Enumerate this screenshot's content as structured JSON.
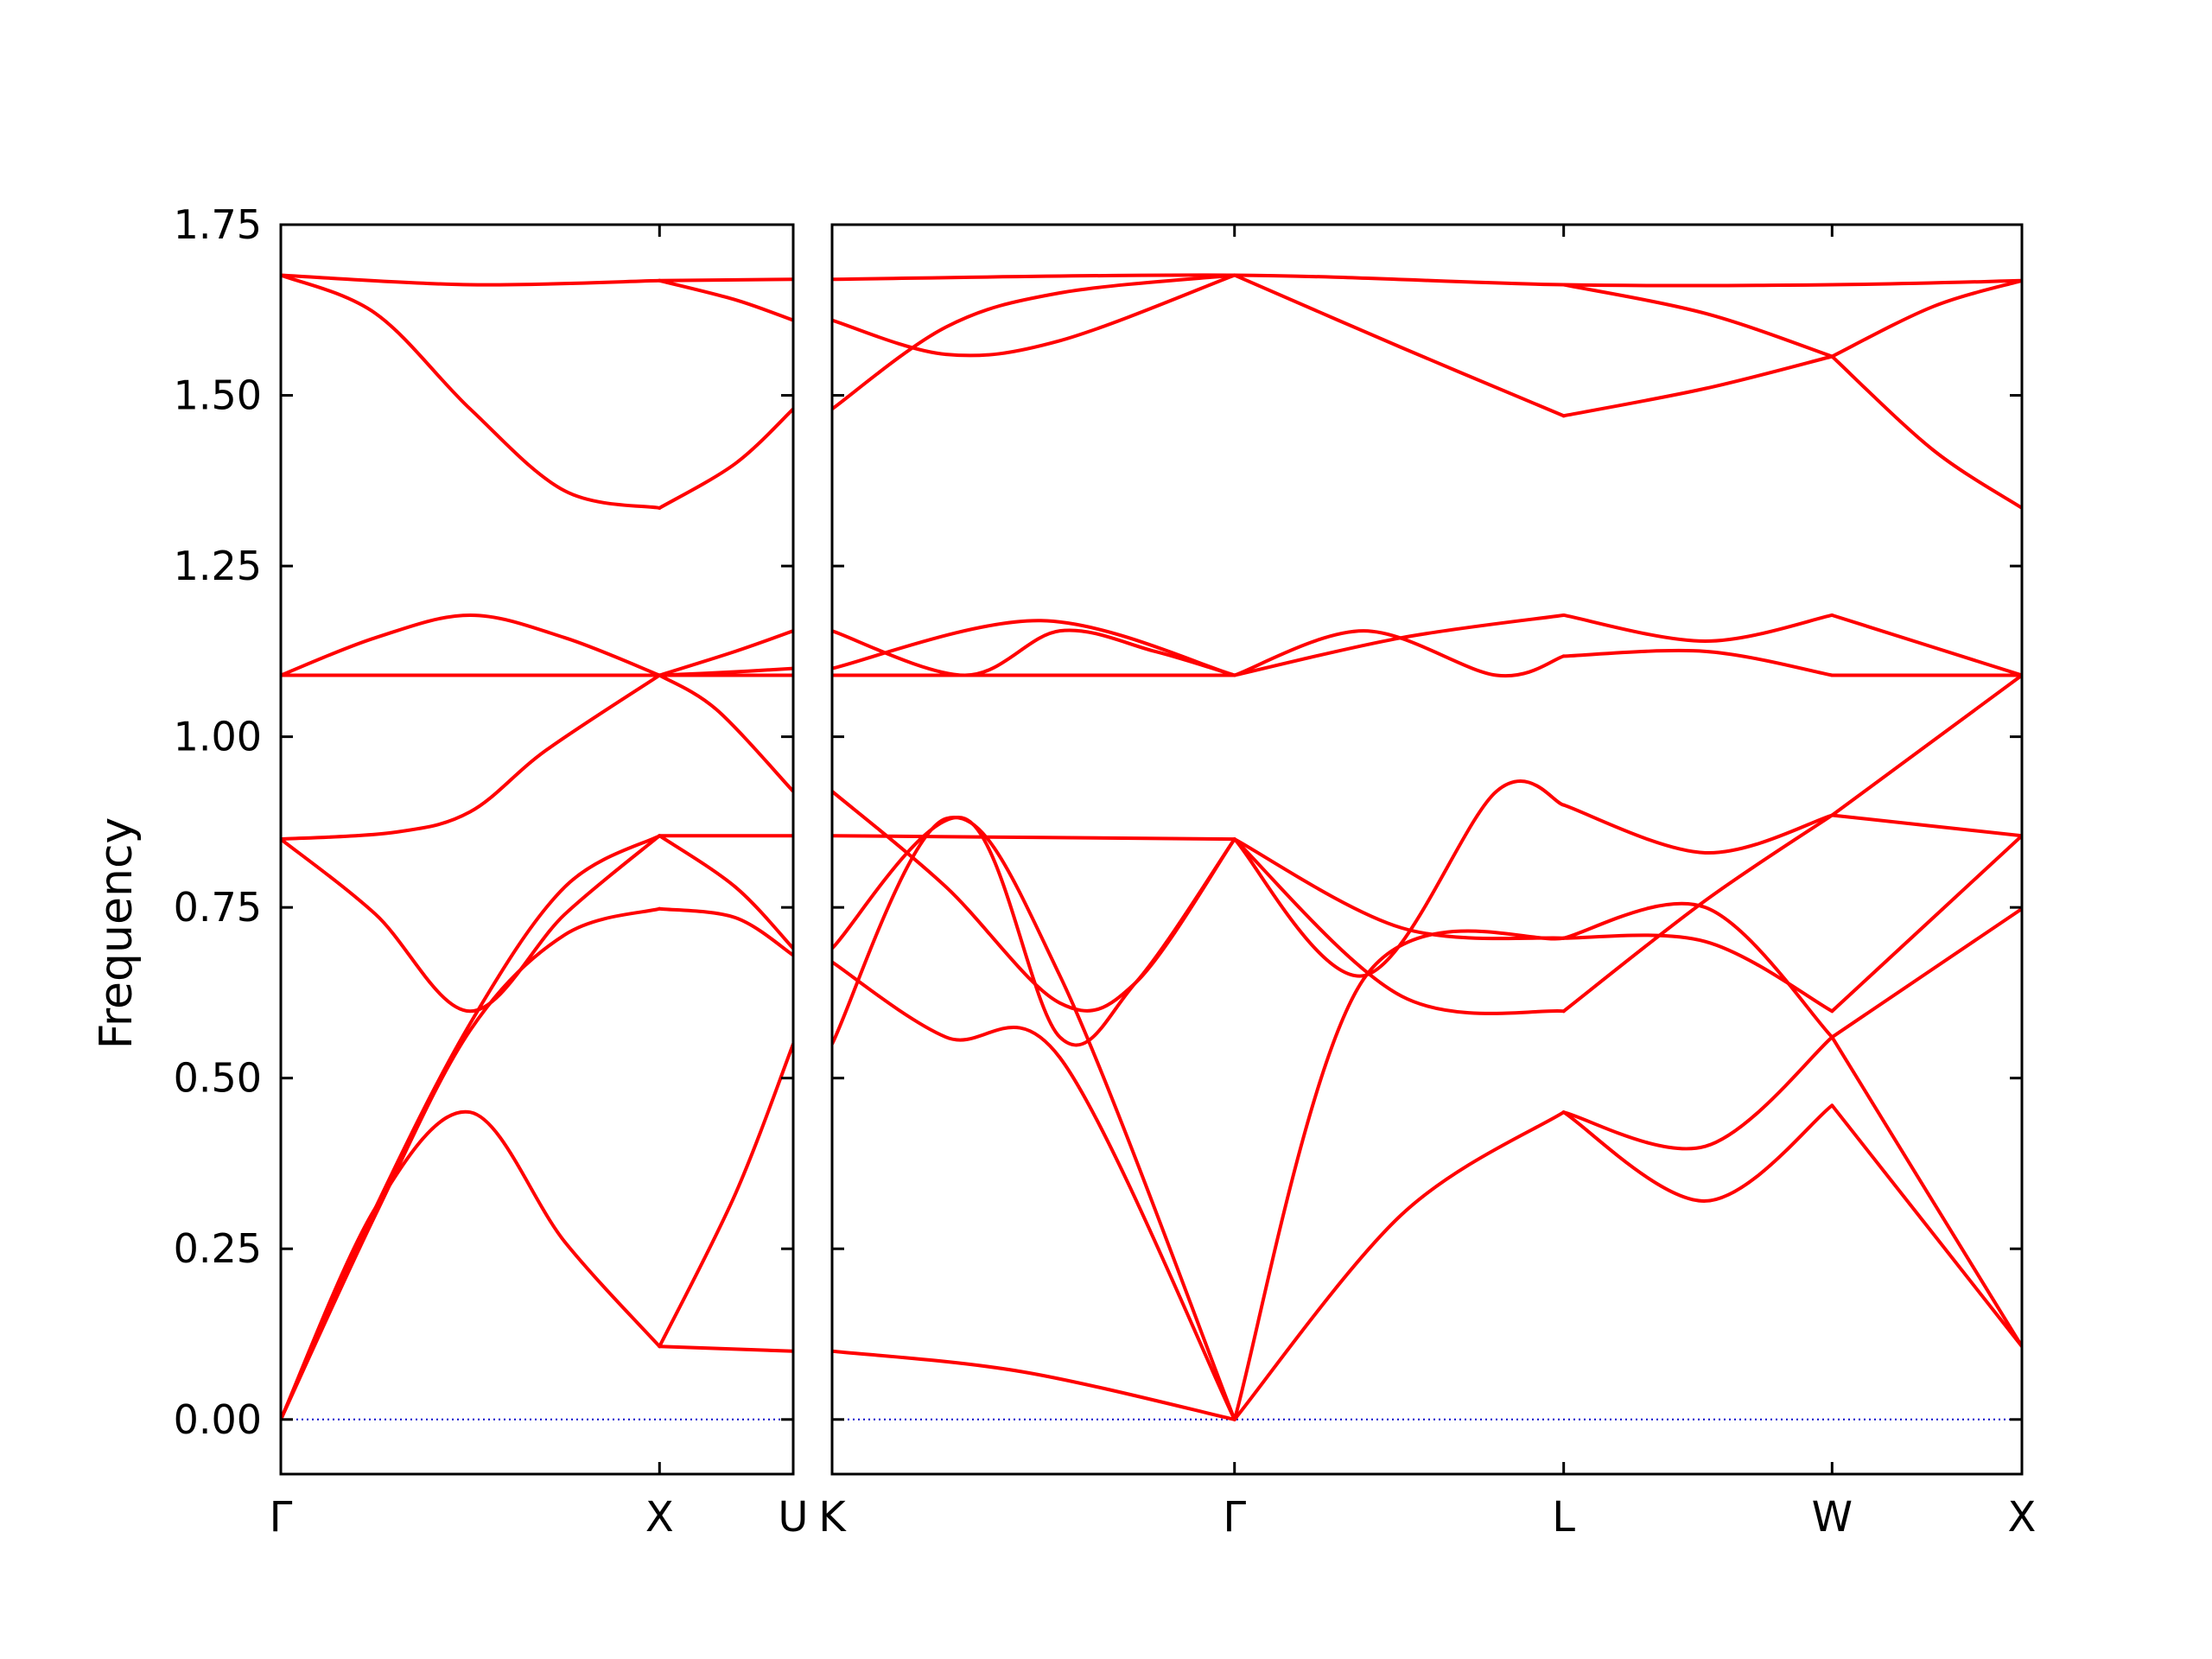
{
  "chart_data": {
    "type": "line",
    "title": "",
    "ylabel": "Frequency",
    "ylim": [
      -0.08,
      1.75
    ],
    "yticks": [
      "0.00",
      "0.25",
      "0.50",
      "0.75",
      "1.00",
      "1.25",
      "1.50",
      "1.75"
    ],
    "grid": false,
    "legend": "none",
    "colors": {
      "band": "#ff0000",
      "zero_line": "#0000cc",
      "axes": "#000000"
    },
    "panels": [
      {
        "name": "Γ-X-U",
        "xticks": [
          {
            "label": "Γ",
            "x": 0
          },
          {
            "label": "X",
            "x": 1
          },
          {
            "label": "U",
            "x": 1.353
          }
        ],
        "xlim": [
          0,
          1.353
        ],
        "series": [
          {
            "x": [
              0,
              0.5,
              1
            ],
            "values": [
              1.676,
              1.662,
              1.668
            ]
          },
          {
            "x": [
              1,
              1.353
            ],
            "values": [
              1.668,
              1.67
            ]
          },
          {
            "x": [
              0,
              0.25,
              0.5,
              0.75,
              1
            ],
            "values": [
              1.676,
              1.62,
              1.48,
              1.36,
              1.335
            ]
          },
          {
            "x": [
              1,
              1.2,
              1.353
            ],
            "values": [
              1.668,
              1.64,
              1.61
            ]
          },
          {
            "x": [
              1,
              1.2,
              1.353
            ],
            "values": [
              1.335,
              1.4,
              1.48
            ]
          },
          {
            "x": [
              0,
              0.25,
              0.5,
              0.75,
              1
            ],
            "values": [
              1.09,
              1.145,
              1.178,
              1.145,
              1.09
            ]
          },
          {
            "x": [
              0,
              0.5,
              1
            ],
            "values": [
              1.09,
              1.09,
              1.09
            ]
          },
          {
            "x": [
              0,
              1.353
            ],
            "values": [
              1.09,
              1.09
            ]
          },
          {
            "x": [
              1,
              1.2,
              1.353
            ],
            "values": [
              1.09,
              1.125,
              1.155
            ]
          },
          {
            "x": [
              1,
              1.2,
              1.353
            ],
            "values": [
              1.09,
              1.095,
              1.1
            ]
          },
          {
            "x": [
              0,
              0.3,
              0.5,
              0.7,
              1
            ],
            "values": [
              0.85,
              0.86,
              0.89,
              0.98,
              1.09
            ]
          },
          {
            "x": [
              1,
              1.15,
              1.353
            ],
            "values": [
              1.09,
              1.04,
              0.92
            ]
          },
          {
            "x": [
              0,
              0.25,
              0.5,
              0.75,
              1
            ],
            "values": [
              0.85,
              0.74,
              0.598,
              0.74,
              0.855
            ]
          },
          {
            "x": [
              1,
              1.353
            ],
            "values": [
              0.855,
              0.855
            ]
          },
          {
            "x": [
              0,
              0.25,
              0.5,
              0.75,
              1
            ],
            "values": [
              0,
              0.31,
              0.58,
              0.78,
              0.855
            ]
          },
          {
            "x": [
              1,
              1.2,
              1.353
            ],
            "values": [
              0.855,
              0.78,
              0.69
            ]
          },
          {
            "x": [
              0,
              0.25,
              0.5,
              0.75,
              1
            ],
            "values": [
              0,
              0.3,
              0.57,
              0.71,
              0.748
            ]
          },
          {
            "x": [
              1,
              1.2,
              1.353
            ],
            "values": [
              0.748,
              0.735,
              0.68
            ]
          },
          {
            "x": [
              0,
              0.25,
              0.5,
              0.75,
              1
            ],
            "values": [
              0,
              0.31,
              0.45,
              0.26,
              0.107
            ]
          },
          {
            "x": [
              1,
              1.2,
              1.353
            ],
            "values": [
              0.107,
              0.33,
              0.55
            ]
          },
          {
            "x": [
              1,
              1.353
            ],
            "values": [
              0.107,
              0.1
            ]
          }
        ],
        "zero_line": true
      },
      {
        "name": "K-Γ-L-W-X",
        "xticks": [
          {
            "label": "K",
            "x": 0
          },
          {
            "label": "Γ",
            "x": 1.06
          },
          {
            "label": "L",
            "x": 1.927
          },
          {
            "label": "W",
            "x": 2.634
          },
          {
            "label": "X",
            "x": 3.134
          }
        ],
        "xlim": [
          0,
          3.134
        ],
        "series": [
          {
            "x": [
              0,
              1.06,
              1.927,
              2.634,
              3.134
            ],
            "values": [
              1.67,
              1.676,
              1.662,
              1.662,
              1.668
            ]
          },
          {
            "x": [
              0,
              0.3,
              0.6,
              1.06
            ],
            "values": [
              1.61,
              1.56,
              1.58,
              1.676
            ]
          },
          {
            "x": [
              0,
              0.3,
              0.6,
              1.06
            ],
            "values": [
              1.48,
              1.6,
              1.65,
              1.676
            ]
          },
          {
            "x": [
              1.06,
              1.5,
              1.927
            ],
            "values": [
              1.676,
              1.57,
              1.47
            ]
          },
          {
            "x": [
              1.927,
              2.3,
              2.634
            ],
            "values": [
              1.47,
              1.51,
              1.557
            ]
          },
          {
            "x": [
              1.927,
              2.3,
              2.634
            ],
            "values": [
              1.662,
              1.62,
              1.557
            ]
          },
          {
            "x": [
              2.634,
              2.9,
              3.134
            ],
            "values": [
              1.557,
              1.63,
              1.668
            ]
          },
          {
            "x": [
              2.634,
              2.9,
              3.134
            ],
            "values": [
              1.557,
              1.42,
              1.335
            ]
          },
          {
            "x": [
              0,
              0.35,
              0.6,
              0.85,
              1.06
            ],
            "values": [
              1.155,
              1.09,
              1.155,
              1.125,
              1.09
            ]
          },
          {
            "x": [
              0,
              0.55,
              1.06
            ],
            "values": [
              1.1,
              1.17,
              1.09
            ]
          },
          {
            "x": [
              0,
              1.06
            ],
            "values": [
              1.09,
              1.09
            ]
          },
          {
            "x": [
              1.06,
              1.4,
              1.75,
              1.927
            ],
            "values": [
              1.09,
              1.155,
              1.09,
              1.118
            ]
          },
          {
            "x": [
              1.06,
              1.5,
              1.927
            ],
            "values": [
              1.09,
              1.145,
              1.178
            ]
          },
          {
            "x": [
              1.927,
              2.3,
              2.634
            ],
            "values": [
              1.178,
              1.14,
              1.178
            ]
          },
          {
            "x": [
              2.634,
              3.134
            ],
            "values": [
              1.178,
              1.09
            ]
          },
          {
            "x": [
              1.927,
              2.3,
              2.634
            ],
            "values": [
              1.118,
              1.125,
              1.09
            ]
          },
          {
            "x": [
              2.634,
              3.134
            ],
            "values": [
              1.09,
              1.09
            ]
          },
          {
            "x": [
              0,
              1.06
            ],
            "values": [
              0.855,
              0.85
            ]
          },
          {
            "x": [
              1.06,
              1.4,
              1.75,
              1.927
            ],
            "values": [
              0.85,
              0.65,
              0.92,
              0.9
            ]
          },
          {
            "x": [
              1.927,
              2.3,
              2.634
            ],
            "values": [
              0.9,
              0.83,
              0.885
            ]
          },
          {
            "x": [
              2.634,
              3.134
            ],
            "values": [
              0.885,
              0.855
            ]
          },
          {
            "x": [
              0,
              0.3,
              0.6,
              0.8,
              1.06
            ],
            "values": [
              0.92,
              0.78,
              0.61,
              0.64,
              0.85
            ]
          },
          {
            "x": [
              1.06,
              1.5,
              1.927
            ],
            "values": [
              0.85,
              0.62,
              0.598
            ]
          },
          {
            "x": [
              1.927,
              2.3,
              2.634
            ],
            "values": [
              0.598,
              0.76,
              0.885
            ]
          },
          {
            "x": [
              2.634,
              3.134
            ],
            "values": [
              0.885,
              1.09
            ]
          },
          {
            "x": [
              0,
              0.35,
              0.6,
              0.8,
              1.06
            ],
            "values": [
              0.69,
              0.88,
              0.56,
              0.64,
              0.85
            ]
          },
          {
            "x": [
              1.06,
              1.5,
              1.927
            ],
            "values": [
              0.85,
              0.72,
              0.705
            ]
          },
          {
            "x": [
              1.927,
              2.3,
              2.634
            ],
            "values": [
              0.705,
              0.7,
              0.598
            ]
          },
          {
            "x": [
              2.634,
              3.134
            ],
            "values": [
              0.598,
              0.855
            ]
          },
          {
            "x": [
              0,
              0.3,
              0.6,
              1.06
            ],
            "values": [
              0.67,
              0.56,
              0.53,
              0
            ]
          },
          {
            "x": [
              1.06,
              1.4,
              1.927
            ],
            "values": [
              0,
              0.645,
              0.705
            ]
          },
          {
            "x": [
              1.927,
              2.3,
              2.634
            ],
            "values": [
              0.705,
              0.75,
              0.56
            ]
          },
          {
            "x": [
              2.634,
              3.134
            ],
            "values": [
              0.56,
              0.748
            ]
          },
          {
            "x": [
              0,
              0.3,
              0.6,
              1.06
            ],
            "values": [
              0.55,
              0.88,
              0.65,
              0
            ]
          },
          {
            "x": [
              1.06,
              1.5,
              1.927
            ],
            "values": [
              0,
              0.3,
              0.45
            ]
          },
          {
            "x": [
              1.927,
              2.3,
              2.634
            ],
            "values": [
              0.45,
              0.4,
              0.56
            ]
          },
          {
            "x": [
              2.634,
              3.134
            ],
            "values": [
              0.56,
              0.107
            ]
          },
          {
            "x": [
              0,
              0.5,
              1.06
            ],
            "values": [
              0.1,
              0.07,
              0
            ]
          },
          {
            "x": [
              1.927,
              2.3,
              2.634
            ],
            "values": [
              0.45,
              0.32,
              0.46
            ]
          },
          {
            "x": [
              2.634,
              3.134
            ],
            "values": [
              0.46,
              0.107
            ]
          }
        ],
        "zero_line": true
      }
    ]
  }
}
